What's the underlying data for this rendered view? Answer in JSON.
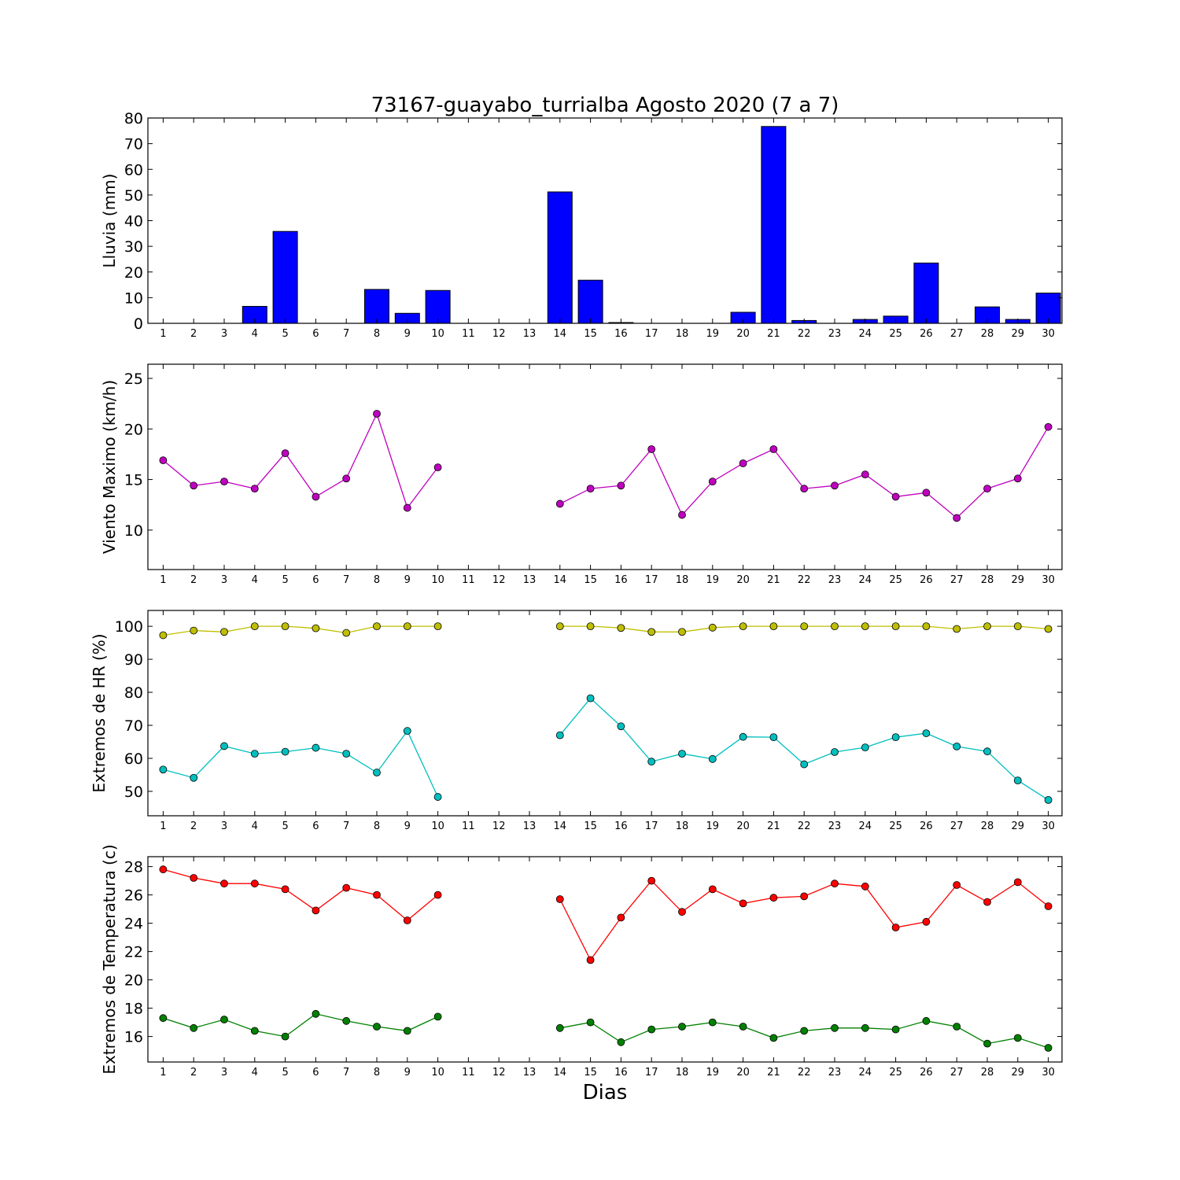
{
  "title": "73167-guayabo_turrialba Agosto 2020  (7 a 7)",
  "xlabel": "Dias",
  "chart_data": [
    {
      "type": "bar",
      "ylabel": "Lluvia (mm)",
      "ylim": [
        0,
        80
      ],
      "yticks": [
        0,
        10,
        20,
        30,
        40,
        50,
        60,
        70,
        80
      ],
      "categories": [
        1,
        2,
        3,
        4,
        5,
        6,
        7,
        8,
        9,
        10,
        11,
        12,
        13,
        14,
        15,
        16,
        17,
        18,
        19,
        20,
        21,
        22,
        23,
        24,
        25,
        26,
        27,
        28,
        29,
        30
      ],
      "values": [
        0,
        0,
        0,
        6.6,
        35.8,
        0,
        0,
        13.2,
        3.9,
        12.8,
        0,
        0,
        0,
        51.2,
        16.8,
        0.3,
        0,
        0,
        0,
        4.3,
        76.7,
        1.1,
        0,
        1.5,
        2.8,
        23.5,
        0,
        6.4,
        1.5,
        11.8
      ],
      "bar_color": "#0000ff"
    },
    {
      "type": "line",
      "ylabel": "Viento Maximo (km/h)",
      "ylim": [
        6.1,
        26.4
      ],
      "yticks": [
        10,
        15,
        20,
        25
      ],
      "x": [
        1,
        2,
        3,
        4,
        5,
        6,
        7,
        8,
        9,
        10,
        11,
        12,
        13,
        14,
        15,
        16,
        17,
        18,
        19,
        20,
        21,
        22,
        23,
        24,
        25,
        26,
        27,
        28,
        29,
        30
      ],
      "series": [
        {
          "color": "#bf00bf",
          "values": [
            16.9,
            14.4,
            14.8,
            14.1,
            17.6,
            13.3,
            15.1,
            21.5,
            12.2,
            16.2,
            null,
            null,
            null,
            12.6,
            14.1,
            14.4,
            18.0,
            11.5,
            14.8,
            16.6,
            18.0,
            14.1,
            14.4,
            15.5,
            13.3,
            13.7,
            11.2,
            14.1,
            15.1,
            20.2
          ]
        }
      ]
    },
    {
      "type": "line",
      "ylabel": "Extremos de HR (%)",
      "ylim": [
        42.6,
        104.8
      ],
      "yticks": [
        50,
        60,
        70,
        80,
        90,
        100
      ],
      "x": [
        1,
        2,
        3,
        4,
        5,
        6,
        7,
        8,
        9,
        10,
        11,
        12,
        13,
        14,
        15,
        16,
        17,
        18,
        19,
        20,
        21,
        22,
        23,
        24,
        25,
        26,
        27,
        28,
        29,
        30
      ],
      "series": [
        {
          "color": "#bfbf00",
          "values": [
            97.3,
            98.7,
            98.3,
            100,
            100,
            99.4,
            98.0,
            100,
            100,
            100,
            null,
            null,
            null,
            100,
            100,
            99.5,
            98.3,
            98.3,
            99.6,
            100,
            100,
            100,
            100,
            100,
            100,
            100,
            99.2,
            100,
            100,
            99.2
          ]
        },
        {
          "color": "#00bfbf",
          "values": [
            56.6,
            54.1,
            63.7,
            61.4,
            62.0,
            63.2,
            61.4,
            55.7,
            68.3,
            48.3,
            null,
            null,
            null,
            67.0,
            78.2,
            69.7,
            59.0,
            61.4,
            59.8,
            66.5,
            66.4,
            58.2,
            61.9,
            63.3,
            66.4,
            67.6,
            63.6,
            62.1,
            53.3,
            47.4
          ]
        }
      ]
    },
    {
      "type": "line",
      "ylabel": "Extremos de Temperatura (c)",
      "ylim": [
        14.2,
        28.7
      ],
      "yticks": [
        16,
        18,
        20,
        22,
        24,
        26,
        28
      ],
      "x": [
        1,
        2,
        3,
        4,
        5,
        6,
        7,
        8,
        9,
        10,
        11,
        12,
        13,
        14,
        15,
        16,
        17,
        18,
        19,
        20,
        21,
        22,
        23,
        24,
        25,
        26,
        27,
        28,
        29,
        30
      ],
      "series": [
        {
          "color": "#ff0000",
          "values": [
            27.8,
            27.2,
            26.8,
            26.8,
            26.4,
            24.9,
            26.5,
            26.0,
            24.2,
            26.0,
            null,
            null,
            null,
            25.7,
            21.4,
            24.4,
            27.0,
            24.8,
            26.4,
            25.4,
            25.8,
            25.9,
            26.8,
            26.6,
            23.7,
            24.1,
            26.7,
            25.5,
            26.9,
            25.2
          ]
        },
        {
          "color": "#008000",
          "values": [
            17.3,
            16.6,
            17.2,
            16.4,
            16.0,
            17.6,
            17.1,
            16.7,
            16.4,
            17.4,
            null,
            null,
            null,
            16.6,
            17.0,
            15.6,
            16.5,
            16.7,
            17.0,
            16.7,
            15.9,
            16.4,
            16.6,
            16.6,
            16.5,
            17.1,
            16.7,
            15.5,
            15.9,
            15.2
          ]
        }
      ]
    }
  ]
}
